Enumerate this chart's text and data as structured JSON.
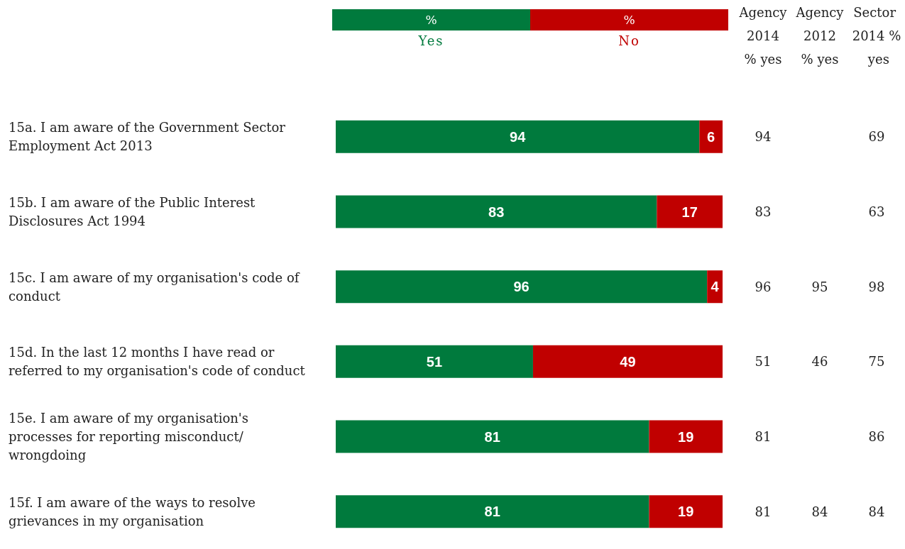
{
  "chart_data": [
    {
      "type": "bar",
      "orientation": "horizontal",
      "stacked": true,
      "legend": "top",
      "legend_title": "%",
      "tick_labels": "y",
      "xlim": [
        0,
        100
      ],
      "categories": [
        "15a. I am aware of the Government Sector Employment Act 2013",
        "15b. I am aware of the Public Interest Disclosures Act 1994",
        "15c. I am aware of my organisation's code of conduct",
        "15d. In the last 12 months I have read or referred to my organisation's code of conduct",
        "15e. I am aware of my organisation's processes for reporting misconduct/wrongdoing",
        "15f. I am aware of the ways to resolve grievances in my organisation"
      ],
      "series": [
        {
          "name": "Yes",
          "color": "#007a3d",
          "values": [
            94,
            83,
            96,
            51,
            81,
            81
          ],
          "value_labels": [
            "94",
            "83",
            "96",
            "51",
            "81",
            "81"
          ]
        },
        {
          "name": "No",
          "color": "#c00000",
          "values": [
            6,
            17,
            4,
            49,
            19,
            19
          ],
          "value_labels": [
            "6",
            "17",
            "4",
            "49",
            "19",
            "19"
          ]
        }
      ]
    },
    {
      "type": "heatmap",
      "data_labels": true,
      "categories": [
        "Agency 2014 % yes",
        "Agency 2012 % yes",
        "Sector 2014 % yes"
      ],
      "y_categories": [
        null,
        null,
        null,
        null,
        null,
        null
      ],
      "cells": [
        [
          94,
          null,
          69
        ],
        [
          83,
          null,
          63
        ],
        [
          96,
          95,
          98
        ],
        [
          51,
          46,
          75
        ],
        [
          81,
          null,
          86
        ],
        [
          81,
          84,
          84
        ]
      ]
    }
  ]
}
